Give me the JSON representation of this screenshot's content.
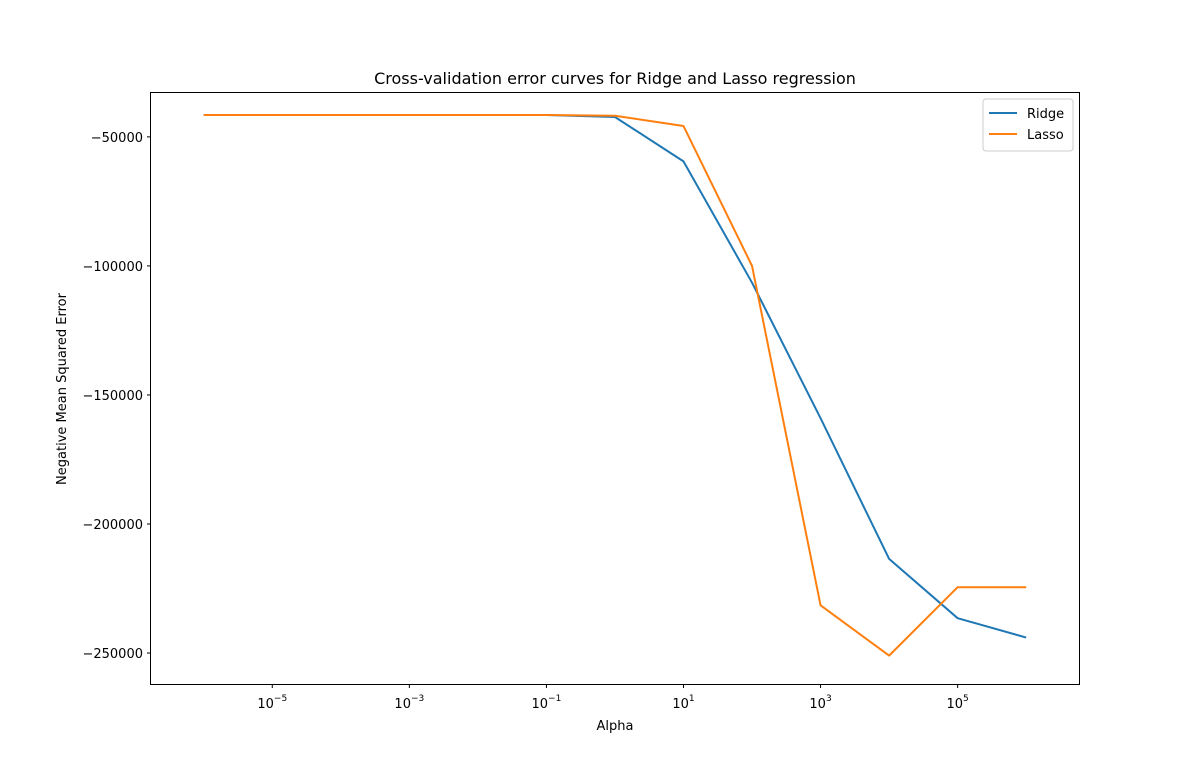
{
  "chart_data": {
    "type": "line",
    "title": "Cross-validation error curves for Ridge and Lasso regression",
    "xlabel": "Alpha",
    "ylabel": "Negative Mean Squared Error",
    "x_scale": "log",
    "x_range": [
      1.7e-07,
      5900000.0
    ],
    "y_range": [
      -262000,
      -33000
    ],
    "x_ticks": [
      {
        "value": 1e-05,
        "base": "10",
        "exp": "−5"
      },
      {
        "value": 0.001,
        "base": "10",
        "exp": "−3"
      },
      {
        "value": 0.1,
        "base": "10",
        "exp": "−1"
      },
      {
        "value": 10.0,
        "base": "10",
        "exp": "1"
      },
      {
        "value": 1000.0,
        "base": "10",
        "exp": "3"
      },
      {
        "value": 100000.0,
        "base": "10",
        "exp": "5"
      }
    ],
    "y_ticks": [
      {
        "value": -50000,
        "label": "−50000"
      },
      {
        "value": -100000,
        "label": "−100000"
      },
      {
        "value": -150000,
        "label": "−150000"
      },
      {
        "value": -200000,
        "label": "−200000"
      },
      {
        "value": -250000,
        "label": "−250000"
      }
    ],
    "x": [
      1e-06,
      1e-05,
      0.0001,
      0.001,
      0.01,
      0.1,
      1.0,
      10.0,
      100.0,
      1000.0,
      10000.0,
      100000.0,
      1000000.0
    ],
    "series": [
      {
        "name": "Ridge",
        "color": "#1f77b4",
        "values": [
          -41500,
          -41500,
          -41500,
          -41500,
          -41500,
          -41500,
          -42300,
          -59500,
          -106500,
          -159000,
          -213500,
          -236500,
          -244000
        ]
      },
      {
        "name": "Lasso",
        "color": "#ff7f0e",
        "values": [
          -41500,
          -41500,
          -41500,
          -41500,
          -41500,
          -41500,
          -41800,
          -45800,
          -100000,
          -231500,
          -251000,
          -224500,
          -224500
        ]
      }
    ],
    "grid": false,
    "legend_position": "upper right"
  }
}
